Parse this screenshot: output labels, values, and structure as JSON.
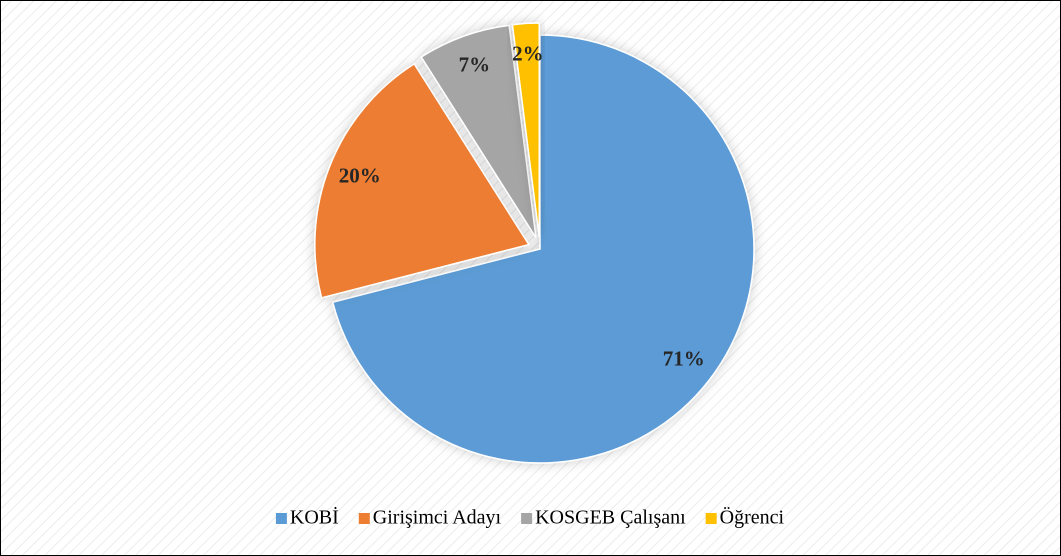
{
  "chart_data": {
    "type": "pie",
    "categories": [
      "KOBİ",
      "Girişimci Adayı",
      "KOSGEB Çalışanı",
      "Öğrenci"
    ],
    "values": [
      71,
      20,
      7,
      2
    ],
    "value_labels": [
      "71%",
      "20%",
      "7%",
      "2%"
    ],
    "colors": [
      "#5b9bd5",
      "#ed7d31",
      "#a5a5a5",
      "#ffc000"
    ],
    "legend": "bottom"
  }
}
